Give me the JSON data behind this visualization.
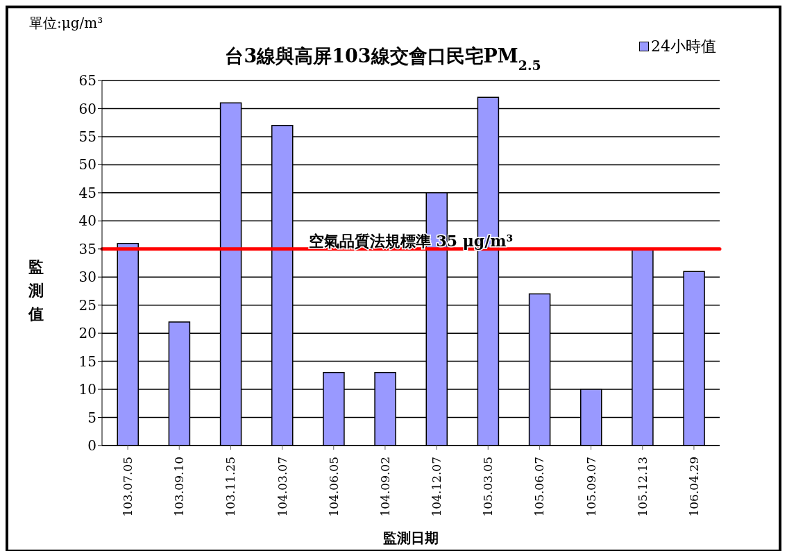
{
  "chart_data": {
    "type": "bar",
    "title": "台3線與高屏103線交會口民宅PM$_{2.5}$",
    "xlabel": "監測日期",
    "ylabel": "監測值",
    "annotations": [
      "單位:μg/m³"
    ],
    "categories": [
      "103.07.05",
      "103.09.10",
      "103.11.25",
      "104.03.07",
      "104.06.05",
      "104.09.02",
      "104.12.07",
      "105.03.05",
      "105.06.07",
      "105.09.07",
      "105.12.13",
      "106.04.29"
    ],
    "series": [
      {
        "name": "24小時值",
        "color": "#9999ff",
        "values": [
          36,
          22,
          61,
          57,
          13,
          13,
          45,
          62,
          27,
          10,
          35,
          31
        ]
      }
    ],
    "ylim": [
      0,
      65
    ],
    "yticks": [
      0,
      5,
      10,
      15,
      20,
      25,
      30,
      35,
      40,
      45,
      50,
      55,
      60,
      65
    ],
    "ref_lines": [
      {
        "axis": "y",
        "value": 35,
        "label": "空氣品質法規標準 35 μg/m³",
        "color": "#ff0000"
      }
    ],
    "grid": "y",
    "legend": "top right"
  }
}
